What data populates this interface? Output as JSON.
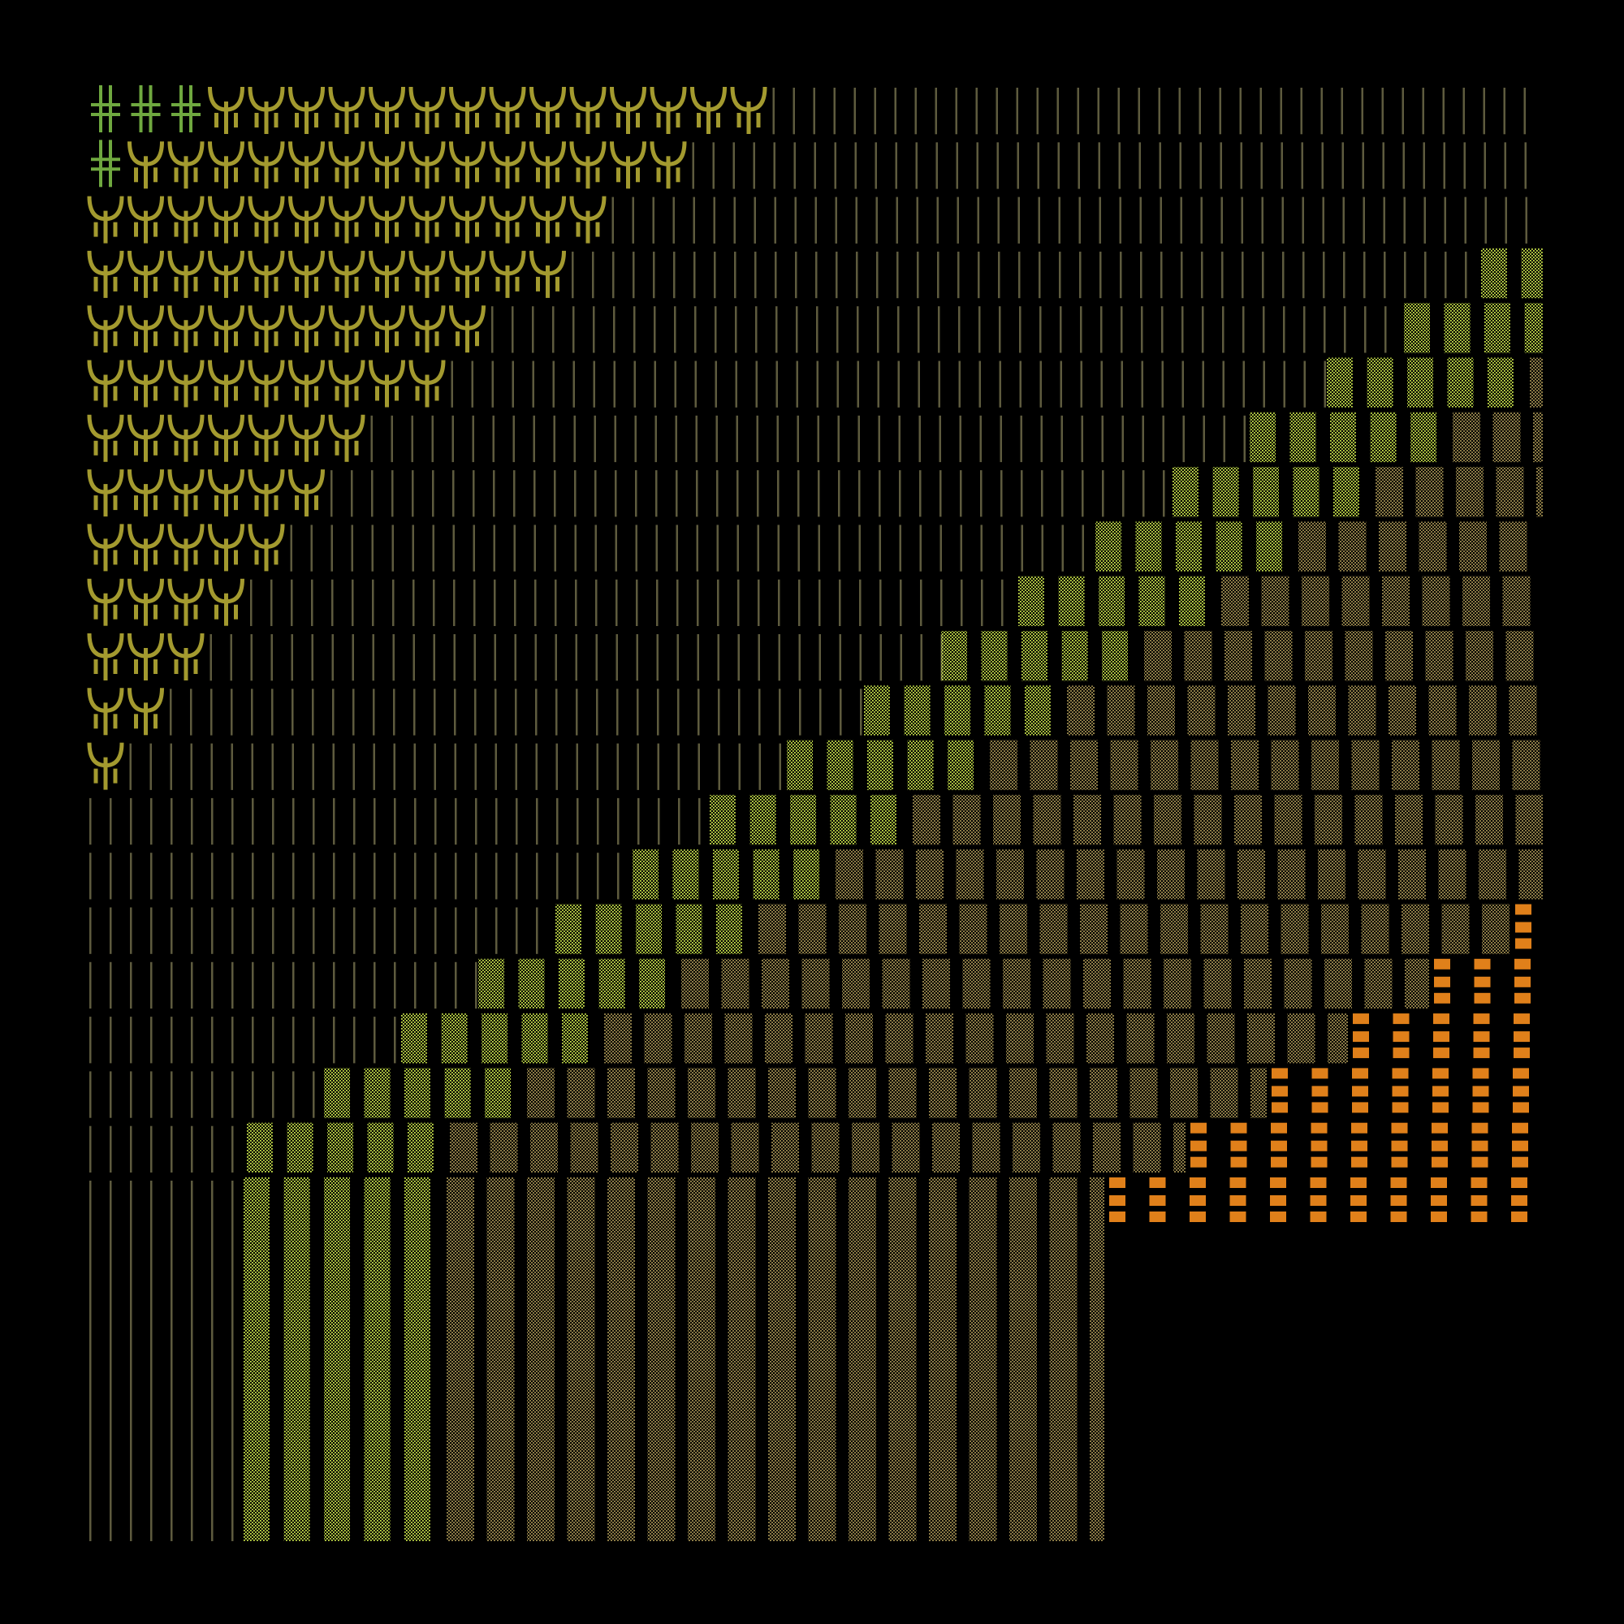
{
  "colors": {
    "background": "#000000",
    "trident_glyph": "#a39a2f",
    "cross_glyph": "#6fa83f",
    "line_glyph": "#5e5b3e",
    "dotted_light": "#c9e34a",
    "dotted_dark": "#8a7a45",
    "orange_block": "#e0801a"
  },
  "regions": [
    {
      "name": "cross-glyph-region",
      "icon": "double-cross-icon"
    },
    {
      "name": "trident-glyph-region",
      "icon": "trident-icon"
    },
    {
      "name": "vertical-line-region",
      "icon": "vertical-lines-icon"
    },
    {
      "name": "light-dot-region",
      "icon": "light-dot-pattern-icon"
    },
    {
      "name": "dark-dot-region",
      "icon": "dark-dot-pattern-icon"
    },
    {
      "name": "orange-block-region",
      "icon": "orange-block-icon"
    }
  ]
}
